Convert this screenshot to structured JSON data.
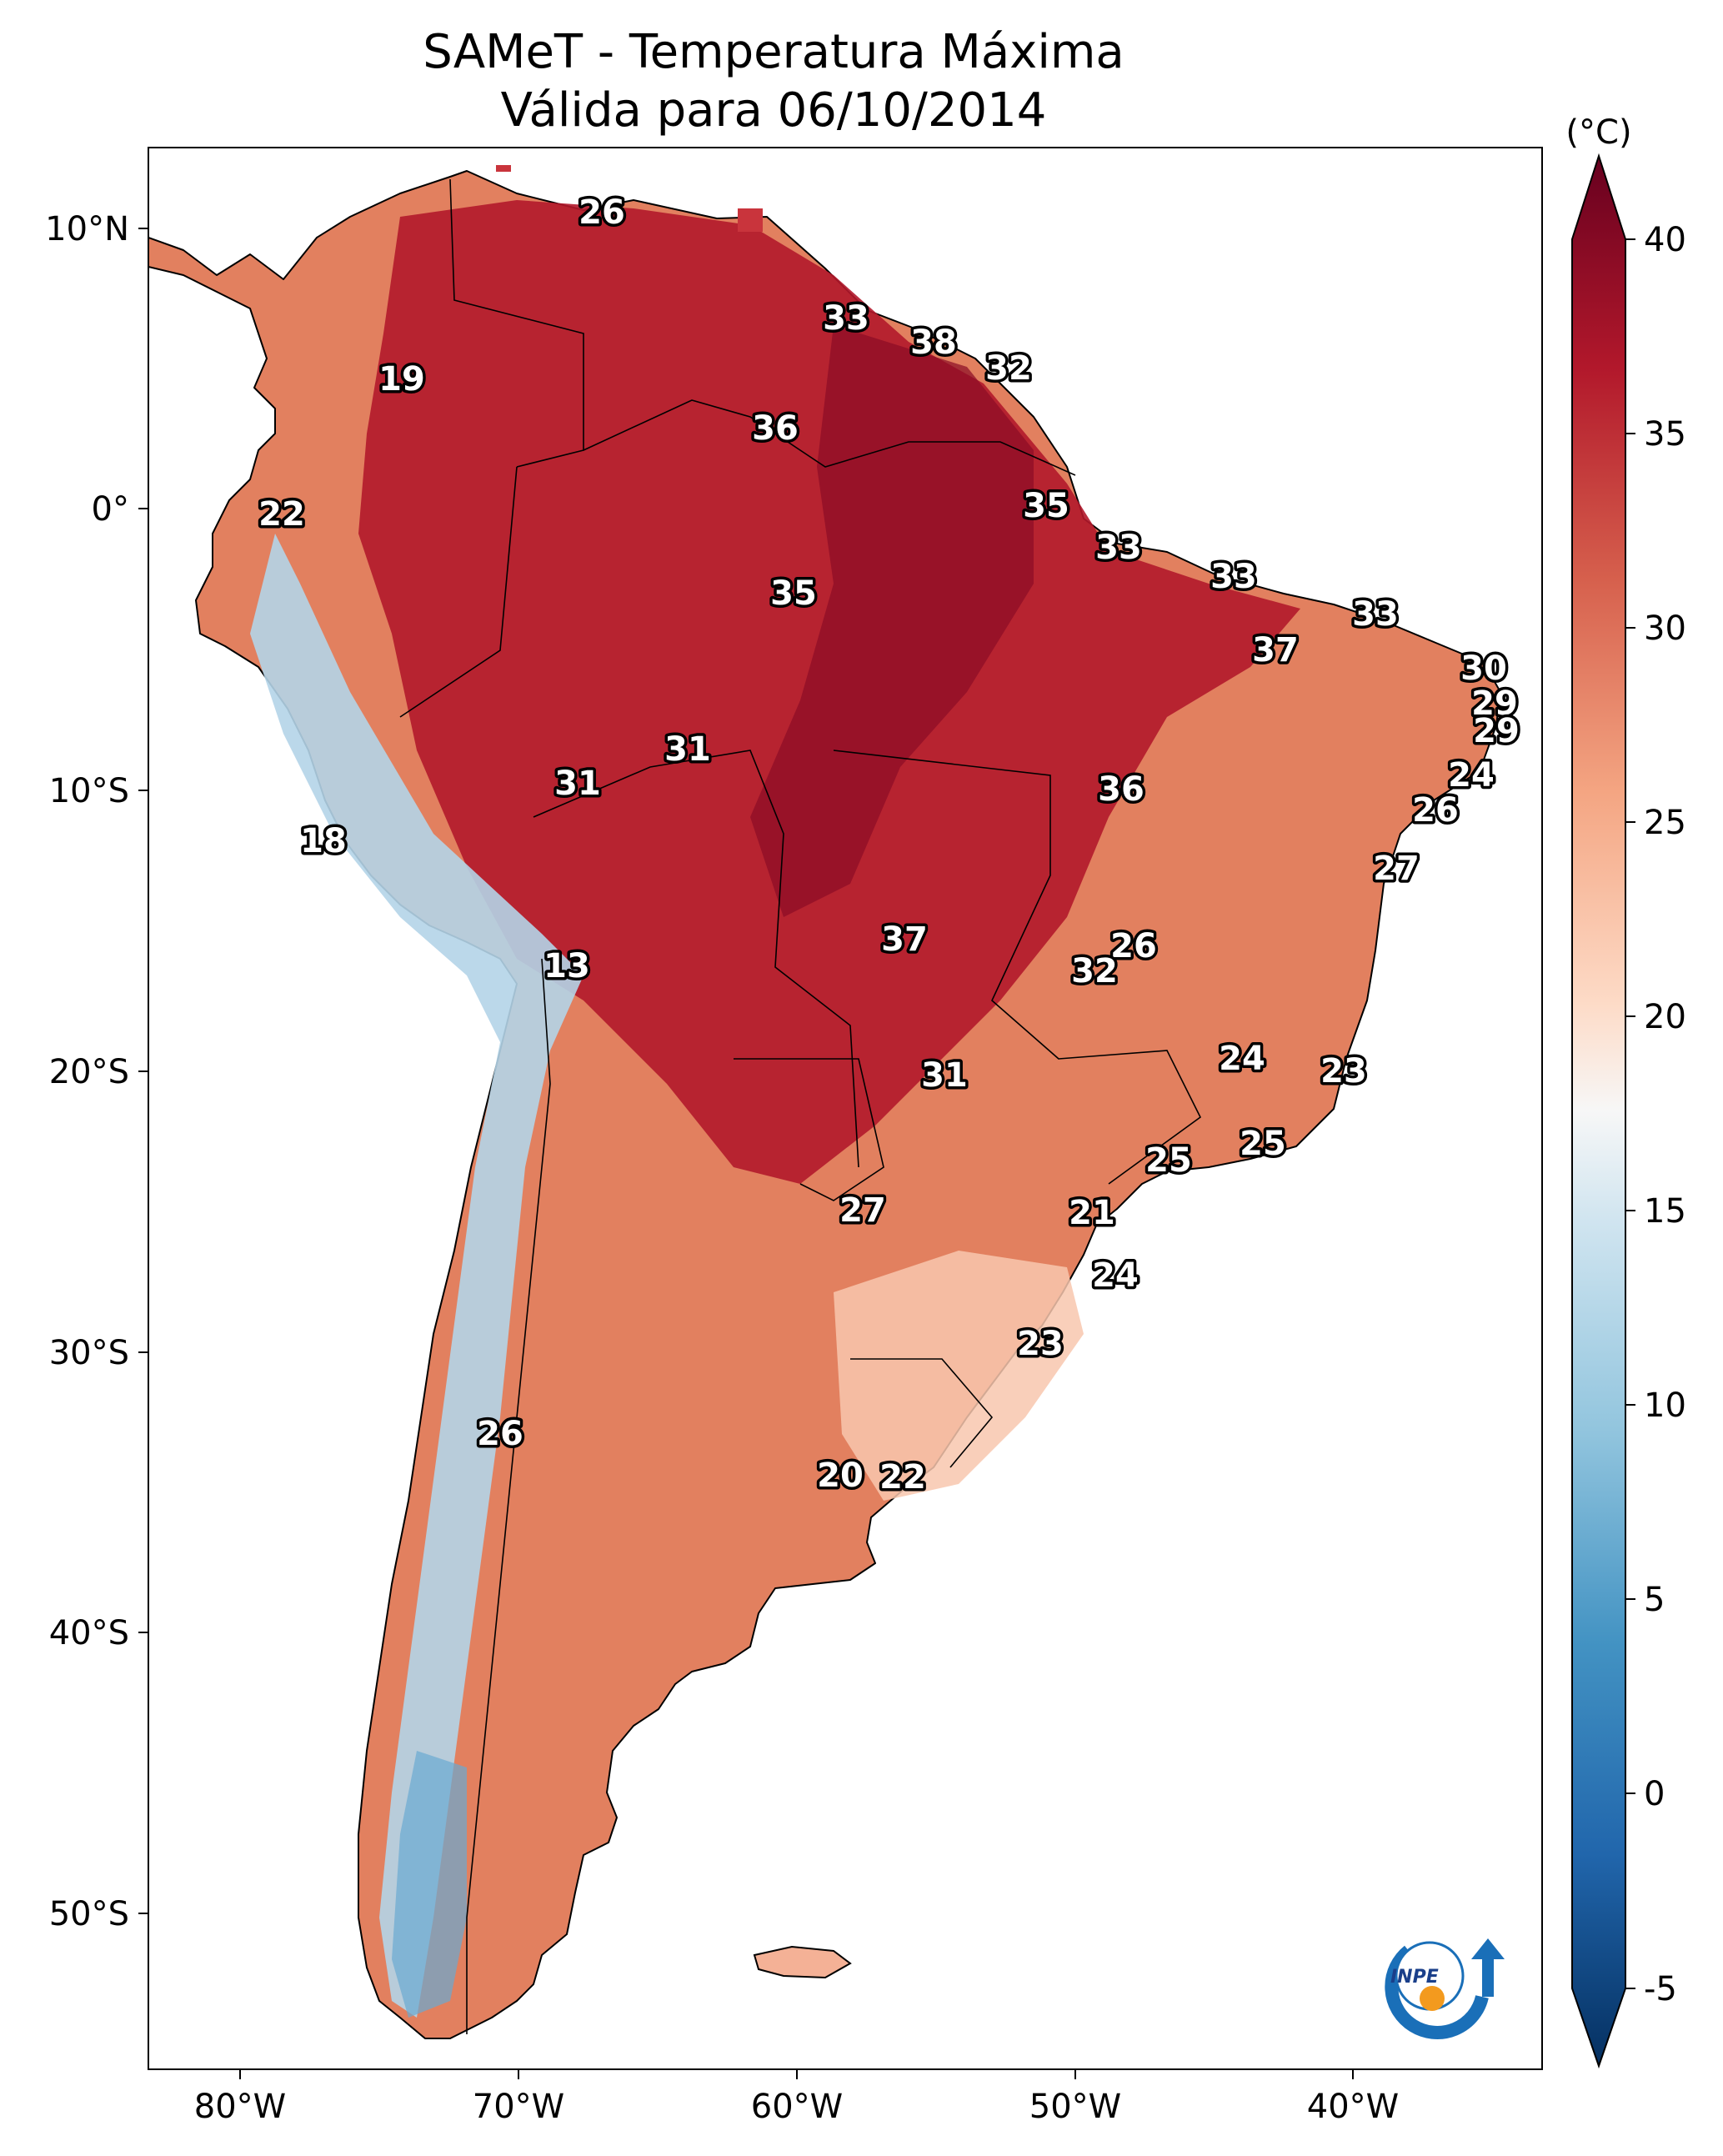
{
  "title": {
    "line1": "SAMeT - Temperatura Máxima",
    "line2": "Válida para 06/10/2014"
  },
  "axes": {
    "lat_ticks": [
      "10°N",
      "0°",
      "10°S",
      "20°S",
      "30°S",
      "40°S",
      "50°S"
    ],
    "lon_ticks": [
      "80°W",
      "70°W",
      "60°W",
      "50°W",
      "40°W"
    ]
  },
  "colorbar": {
    "unit": "(°C)",
    "ticks": [
      "40",
      "35",
      "30",
      "25",
      "20",
      "15",
      "10",
      "5",
      "0",
      "-5"
    ],
    "colors": {
      "v40": "#67001f",
      "v35": "#b2182b",
      "v30": "#d6604d",
      "v25": "#f4a582",
      "v20": "#fddbc7",
      "v17": "#f7f7f7",
      "v15": "#d1e5f0",
      "v10": "#92c5de",
      "v5": "#4393c3",
      "v0": "#2166ac",
      "vm5": "#053061"
    }
  },
  "station_values": {
    "s01": "26",
    "s02": "33",
    "s03": "38",
    "s04": "32",
    "s05": "19",
    "s06": "36",
    "s07": "22",
    "s08": "35",
    "s09": "33",
    "s10": "35",
    "s11": "33",
    "s12": "33",
    "s13": "37",
    "s14": "30",
    "s15": "29",
    "s16": "29",
    "s17": "31",
    "s18": "31",
    "s19": "36",
    "s20": "24",
    "s21": "26",
    "s22": "18",
    "s23": "27",
    "s24": "13",
    "s25": "37",
    "s26": "26",
    "s27": "32",
    "s28": "24",
    "s29": "23",
    "s30": "31",
    "s31": "25",
    "s32": "25",
    "s33": "27",
    "s34": "21",
    "s35": "24",
    "s36": "23",
    "s37": "26",
    "s38": "20",
    "s39": "22"
  },
  "logo": {
    "text": "INPE"
  }
}
